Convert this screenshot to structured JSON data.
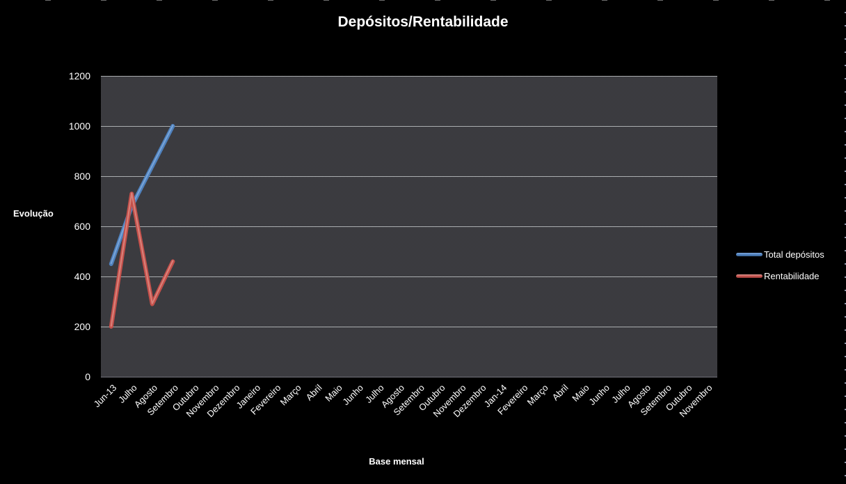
{
  "chart_data": {
    "type": "line",
    "title": "Depósitos/Rentabilidade",
    "xlabel": "Base mensal",
    "ylabel": "Evolução",
    "ylim": [
      0,
      1200
    ],
    "yticks": [
      0,
      200,
      400,
      600,
      800,
      1000,
      1200
    ],
    "grid": true,
    "legend_position": "right",
    "categories": [
      "Jun-13",
      "Julho",
      "Agosto",
      "Setembro",
      "Outubro",
      "Novembro",
      "Dezembro",
      "Janeiro",
      "Fevereiro",
      "Março",
      "Abril",
      "Maio",
      "Junho",
      "Julho",
      "Agosto",
      "Setembro",
      "Outubro",
      "Novembro",
      "Dezembro",
      "Jan-14",
      "Fevereiro",
      "Março",
      "Abril",
      "Maio",
      "Junho",
      "Julho",
      "Agosto",
      "Setembro",
      "Outubro",
      "Novembro"
    ],
    "series": [
      {
        "name": "Total depósitos",
        "color": "#4f81bd",
        "highlight": "#85aedd",
        "values": [
          450,
          680,
          840,
          1000,
          null,
          null,
          null,
          null,
          null,
          null,
          null,
          null,
          null,
          null,
          null,
          null,
          null,
          null,
          null,
          null,
          null,
          null,
          null,
          null,
          null,
          null,
          null,
          null,
          null,
          null
        ]
      },
      {
        "name": "Rentabilidade",
        "color": "#c4504b",
        "highlight": "#de8e86",
        "values": [
          200,
          730,
          290,
          460,
          null,
          null,
          null,
          null,
          null,
          null,
          null,
          null,
          null,
          null,
          null,
          null,
          null,
          null,
          null,
          null,
          null,
          null,
          null,
          null,
          null,
          null,
          null,
          null,
          null,
          null
        ]
      }
    ]
  },
  "colors": {
    "page_background": "#000000",
    "plot_background": "#3a3a3e",
    "gridline": "#b7babd",
    "text": "#ffffff",
    "series_blue": "#4f81bd",
    "series_red": "#c4504b"
  }
}
